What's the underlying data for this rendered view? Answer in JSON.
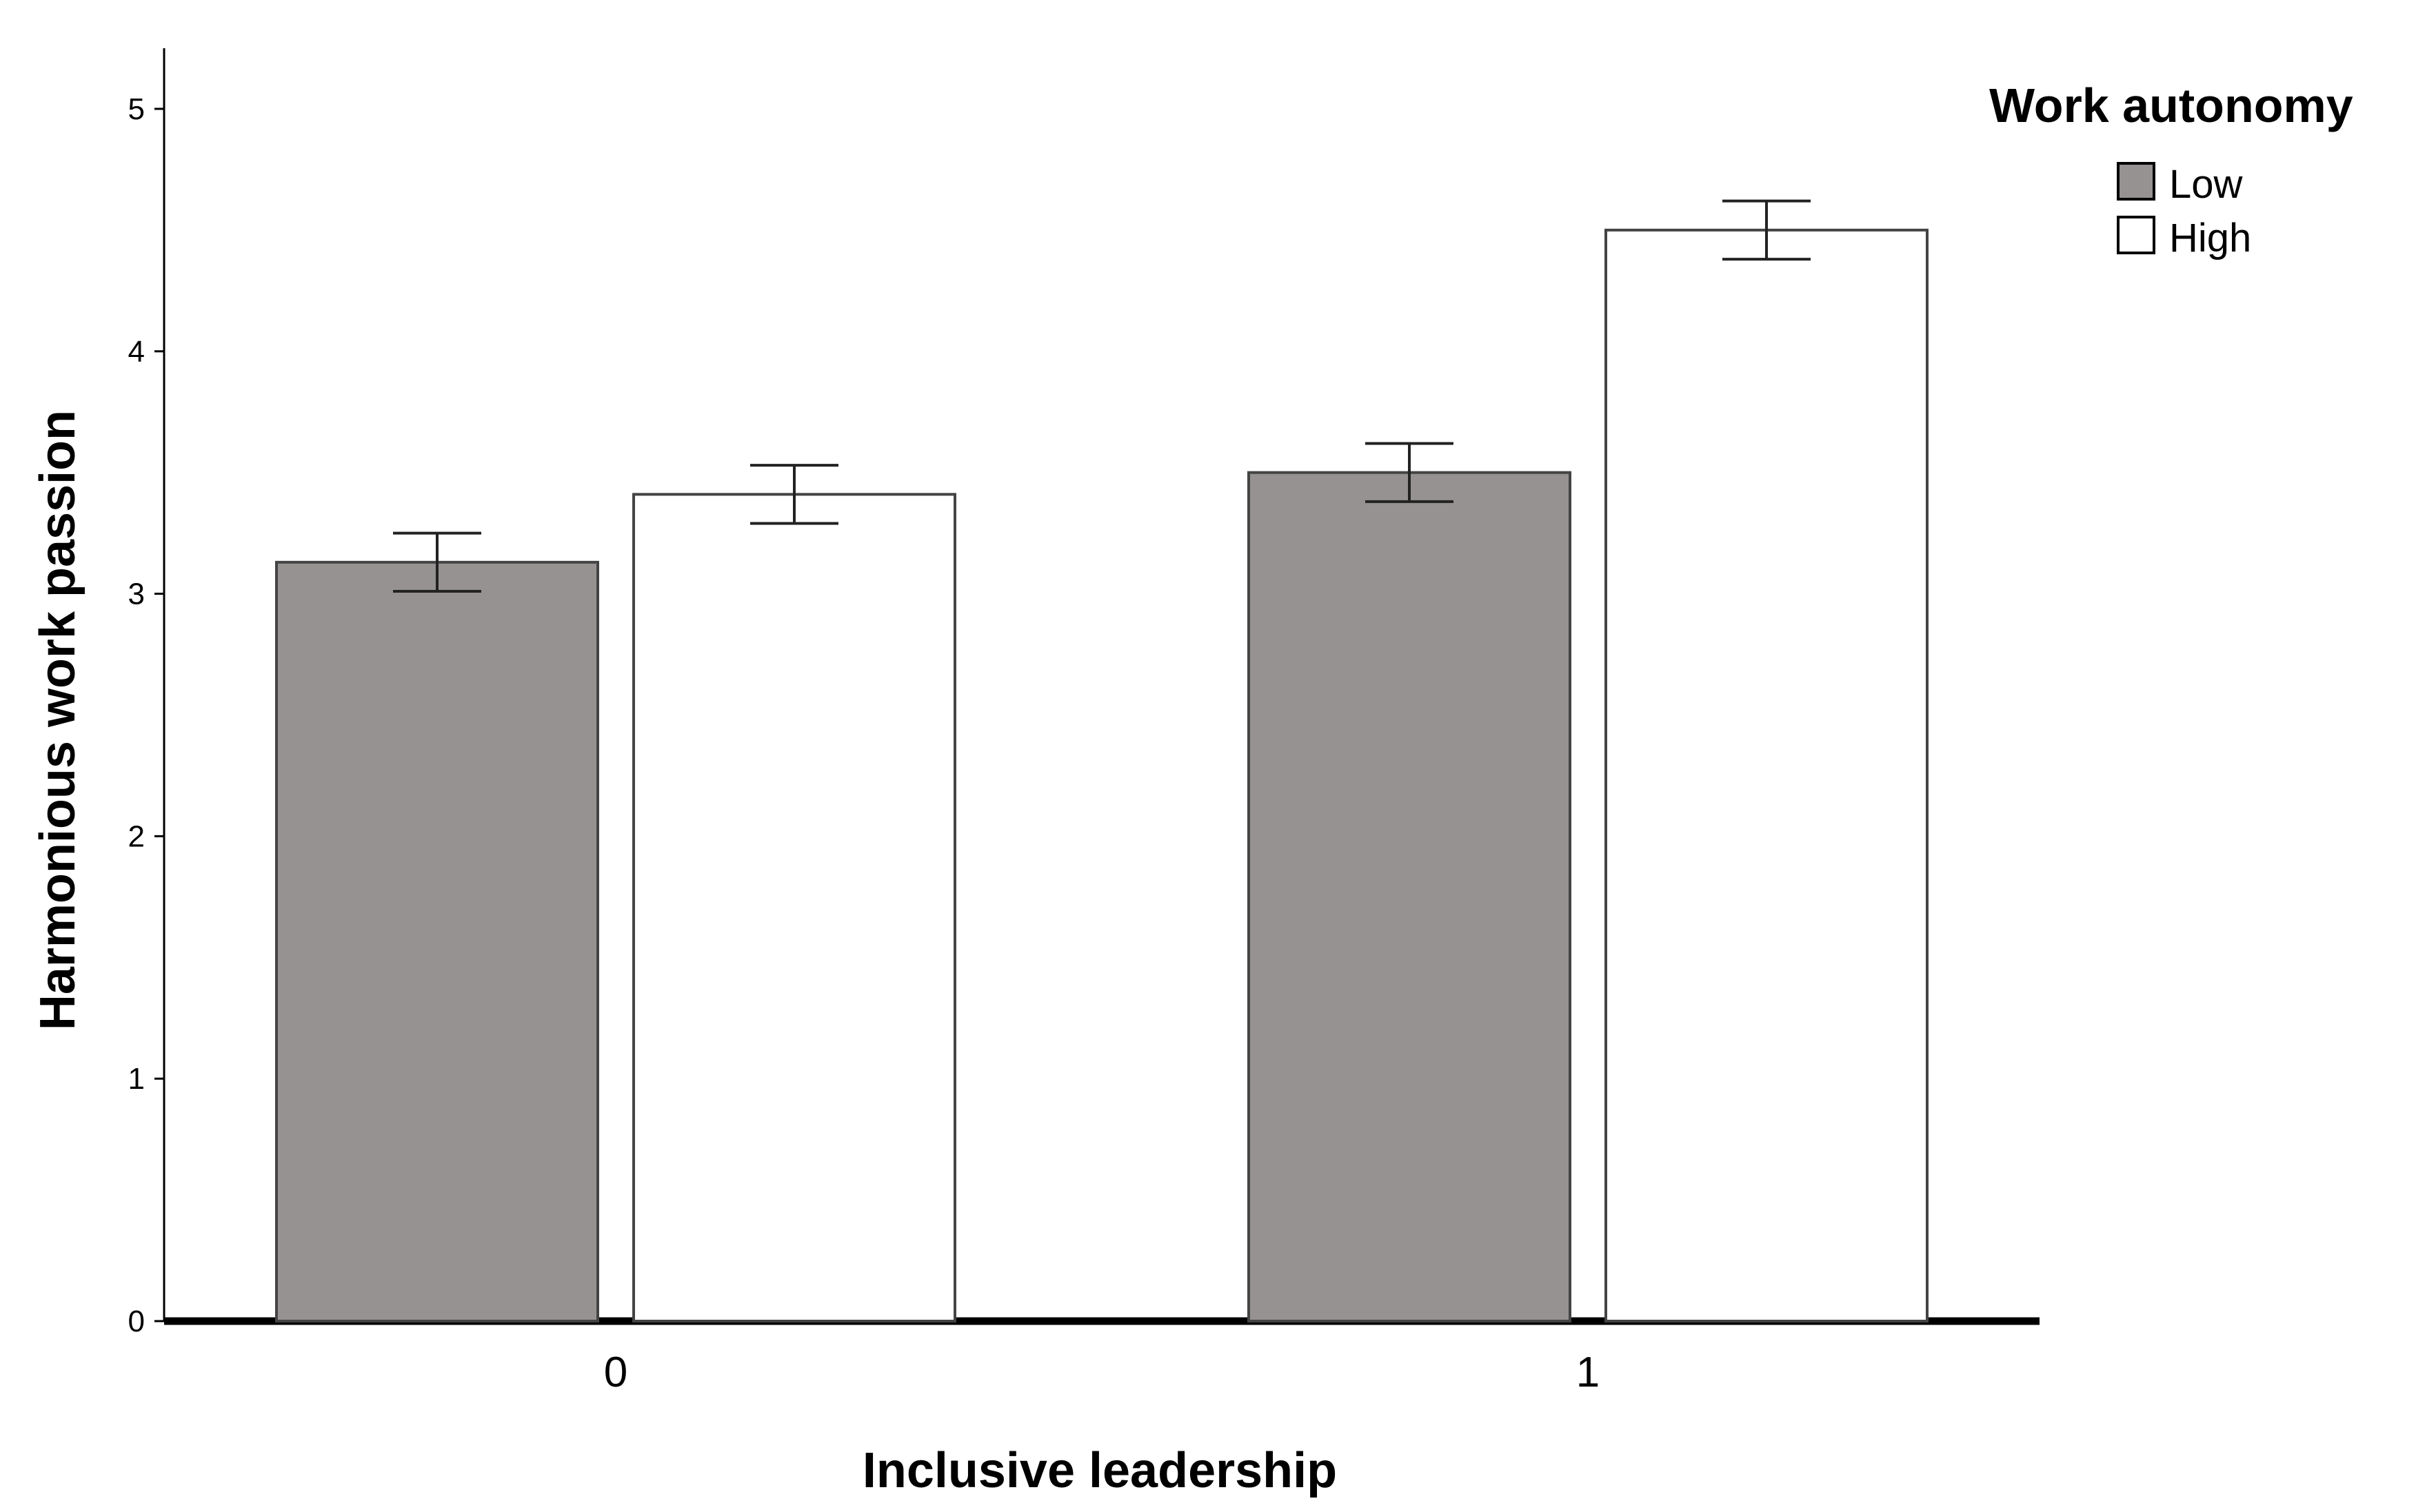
{
  "chart_data": {
    "type": "bar",
    "xlabel": "Inclusive leadership",
    "ylabel": "Harmonious work passion",
    "categories": [
      "0",
      "1"
    ],
    "ylim": [
      0,
      5.25
    ],
    "yticks": [
      "0",
      "1",
      "2",
      "3",
      "4",
      "5"
    ],
    "legend": {
      "title": "Work autonomy",
      "placement": "top-right"
    },
    "series": [
      {
        "name": "Low",
        "color": "#959291",
        "values": [
          3.13,
          3.5
        ],
        "error_low": [
          3.01,
          3.38
        ],
        "error_high": [
          3.25,
          3.62
        ]
      },
      {
        "name": "High",
        "color": "#ffffff",
        "values": [
          3.41,
          4.5
        ],
        "error_low": [
          3.29,
          4.38
        ],
        "error_high": [
          3.53,
          4.62
        ]
      }
    ],
    "grid": false
  }
}
